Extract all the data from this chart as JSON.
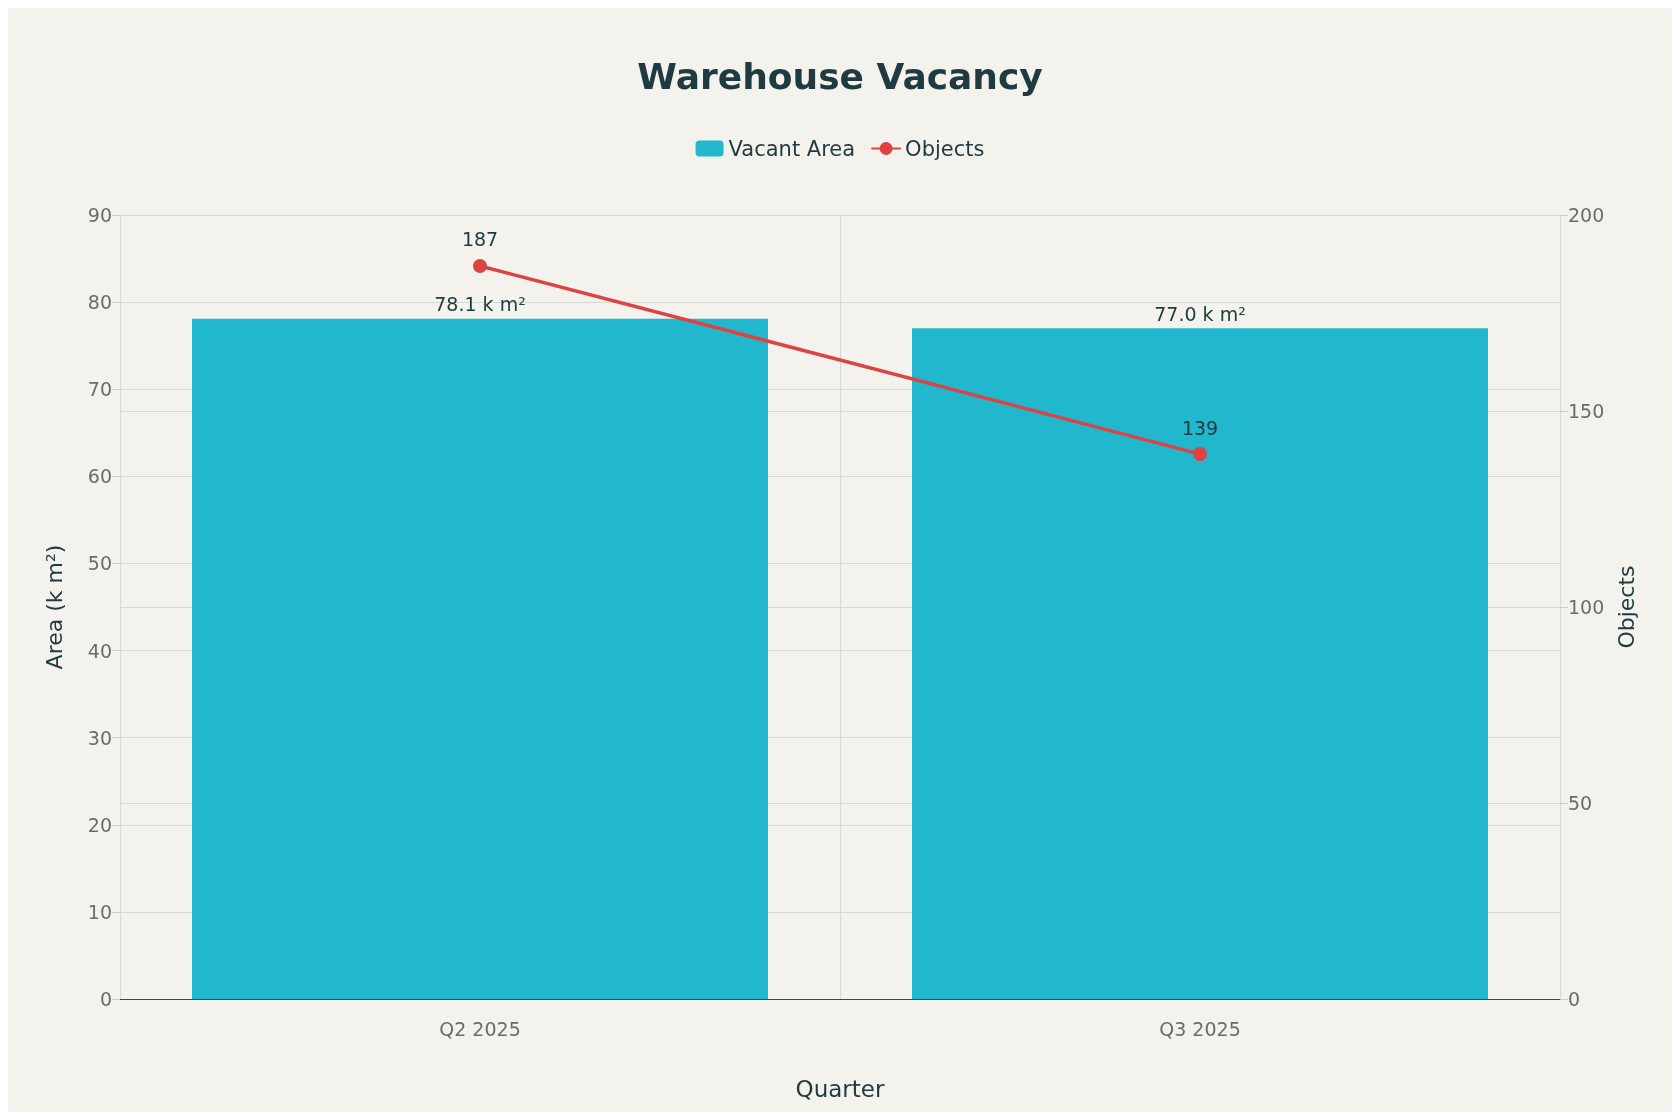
{
  "chart_data": {
    "type": "bar",
    "title": "Warehouse Vacancy",
    "xlabel": "Quarter",
    "ylabel": "Area (k m²)",
    "y2label": "Objects",
    "categories": [
      "Q2 2025",
      "Q3 2025"
    ],
    "series": [
      {
        "name": "Vacant Area",
        "color": "#21b7cc",
        "values": [
          78.1,
          77.0
        ],
        "value_labels": [
          "78.1 k m²",
          "77.0 k m²"
        ]
      },
      {
        "name": "Objects",
        "type": "line",
        "axis": "y2",
        "color": "#dc4444",
        "values": [
          187,
          139
        ],
        "value_labels": [
          "187",
          "139"
        ]
      }
    ],
    "ylim": [
      0,
      90
    ],
    "yticks": [
      0,
      10,
      20,
      30,
      40,
      50,
      60,
      70,
      80,
      90
    ],
    "y2lim": [
      0,
      200
    ],
    "y2ticks": [
      0,
      50,
      100,
      150,
      200
    ],
    "grid": true,
    "legend": "top",
    "marker": "circle",
    "line_style": "solid"
  }
}
